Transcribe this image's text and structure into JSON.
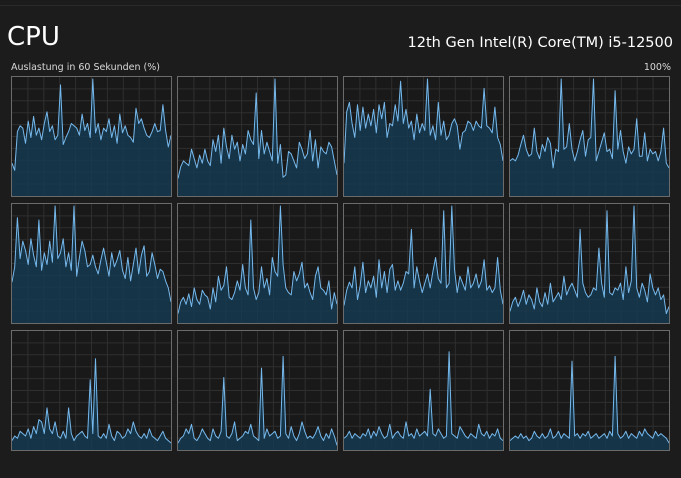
{
  "header": {
    "title": "CPU",
    "processor": "12th Gen Intel(R) Core(TM) i5-12500"
  },
  "chart_data": {
    "type": "area",
    "ylabel": "Auslastung in 60 Sekunden (%)",
    "ymax_label": "100%",
    "ylim": [
      0,
      100
    ],
    "grid": true,
    "line_color": "#76b9ed",
    "fill_color": "#163a50",
    "logical_processors": [
      {
        "values": [
          28,
          22,
          55,
          60,
          58,
          45,
          64,
          50,
          68,
          52,
          58,
          48,
          62,
          72,
          55,
          60,
          48,
          52,
          95,
          44,
          50,
          55,
          62,
          60,
          58,
          52,
          70,
          56,
          62,
          50,
          100,
          54,
          62,
          48,
          58,
          55,
          66,
          50,
          60,
          45,
          70,
          54,
          60,
          52,
          50,
          46,
          75,
          62,
          66,
          58,
          52,
          50,
          55,
          62,
          55,
          56,
          78,
          56,
          42,
          52
        ]
      },
      {
        "values": [
          15,
          25,
          30,
          28,
          26,
          40,
          32,
          24,
          35,
          28,
          40,
          30,
          26,
          48,
          38,
          52,
          28,
          58,
          42,
          32,
          52,
          40,
          46,
          30,
          44,
          36,
          56,
          48,
          44,
          88,
          32,
          56,
          36,
          46,
          38,
          30,
          100,
          28,
          44,
          16,
          18,
          38,
          36,
          30,
          24,
          46,
          40,
          32,
          36,
          56,
          30,
          48,
          24,
          42,
          38,
          36,
          46,
          42,
          30,
          18
        ]
      },
      {
        "values": [
          28,
          72,
          80,
          62,
          50,
          78,
          56,
          76,
          58,
          70,
          60,
          74,
          54,
          78,
          66,
          80,
          50,
          62,
          60,
          78,
          64,
          98,
          62,
          74,
          58,
          64,
          48,
          70,
          54,
          62,
          56,
          100,
          52,
          60,
          48,
          80,
          52,
          64,
          48,
          52,
          62,
          66,
          60,
          40,
          54,
          56,
          64,
          62,
          56,
          64,
          60,
          58,
          92,
          60,
          58,
          54,
          76,
          50,
          44,
          30
        ]
      },
      {
        "values": [
          30,
          32,
          30,
          35,
          44,
          52,
          40,
          34,
          36,
          58,
          38,
          32,
          44,
          38,
          50,
          45,
          24,
          40,
          38,
          100,
          40,
          42,
          62,
          40,
          30,
          38,
          48,
          56,
          34,
          48,
          50,
          100,
          30,
          38,
          46,
          54,
          38,
          40,
          32,
          90,
          40,
          56,
          38,
          28,
          42,
          36,
          40,
          66,
          34,
          34,
          54,
          30,
          40,
          36,
          38,
          30,
          38,
          58,
          28,
          24
        ]
      },
      {
        "values": [
          35,
          48,
          90,
          55,
          70,
          62,
          50,
          72,
          58,
          48,
          88,
          45,
          60,
          50,
          70,
          52,
          100,
          55,
          60,
          72,
          48,
          60,
          45,
          100,
          40,
          56,
          70,
          62,
          48,
          50,
          58,
          48,
          42,
          54,
          64,
          52,
          40,
          60,
          48,
          54,
          62,
          45,
          38,
          56,
          36,
          50,
          64,
          42,
          58,
          66,
          40,
          44,
          60,
          50,
          38,
          46,
          44,
          36,
          30,
          18
        ]
      },
      {
        "values": [
          8,
          18,
          22,
          16,
          25,
          14,
          30,
          20,
          16,
          28,
          24,
          22,
          12,
          30,
          18,
          40,
          28,
          32,
          48,
          22,
          20,
          26,
          36,
          28,
          50,
          30,
          24,
          88,
          30,
          20,
          26,
          48,
          30,
          38,
          24,
          56,
          44,
          40,
          100,
          50,
          30,
          26,
          24,
          44,
          36,
          42,
          52,
          30,
          34,
          26,
          20,
          40,
          48,
          30,
          28,
          24,
          36,
          12,
          26,
          16
        ]
      },
      {
        "values": [
          15,
          28,
          35,
          30,
          48,
          20,
          32,
          52,
          26,
          36,
          30,
          40,
          22,
          54,
          30,
          44,
          26,
          46,
          50,
          28,
          36,
          28,
          34,
          44,
          42,
          80,
          30,
          48,
          36,
          26,
          34,
          42,
          30,
          44,
          56,
          38,
          34,
          96,
          30,
          34,
          100,
          46,
          26,
          40,
          34,
          28,
          48,
          30,
          34,
          42,
          30,
          36,
          54,
          28,
          32,
          26,
          30,
          56,
          28,
          16
        ]
      },
      {
        "values": [
          10,
          18,
          22,
          14,
          20,
          28,
          16,
          24,
          20,
          12,
          30,
          18,
          14,
          26,
          16,
          34,
          18,
          22,
          26,
          20,
          40,
          24,
          30,
          34,
          28,
          22,
          80,
          34,
          26,
          22,
          24,
          30,
          28,
          64,
          34,
          22,
          96,
          26,
          24,
          30,
          28,
          34,
          20,
          48,
          26,
          36,
          100,
          30,
          22,
          34,
          28,
          18,
          42,
          30,
          24,
          30,
          20,
          24,
          8,
          14
        ]
      },
      {
        "values": [
          8,
          12,
          10,
          16,
          14,
          12,
          18,
          10,
          20,
          14,
          26,
          24,
          14,
          36,
          18,
          14,
          24,
          12,
          10,
          16,
          10,
          36,
          14,
          8,
          12,
          14,
          16,
          12,
          10,
          60,
          14,
          78,
          12,
          10,
          14,
          10,
          22,
          12,
          8,
          16,
          14,
          10,
          12,
          18,
          14,
          24,
          16,
          12,
          10,
          14,
          10,
          18,
          12,
          10,
          8,
          12,
          16,
          10,
          8,
          6
        ]
      },
      {
        "values": [
          6,
          10,
          12,
          18,
          14,
          22,
          10,
          8,
          12,
          18,
          14,
          10,
          8,
          18,
          12,
          10,
          16,
          62,
          12,
          10,
          14,
          24,
          8,
          10,
          12,
          16,
          14,
          22,
          12,
          10,
          8,
          70,
          10,
          18,
          12,
          14,
          16,
          10,
          12,
          80,
          14,
          10,
          20,
          12,
          8,
          14,
          24,
          16,
          10,
          12,
          10,
          14,
          20,
          12,
          8,
          14,
          10,
          18,
          12,
          4
        ]
      },
      {
        "values": [
          10,
          12,
          16,
          10,
          14,
          12,
          10,
          14,
          12,
          18,
          10,
          16,
          12,
          20,
          14,
          10,
          12,
          22,
          10,
          14,
          16,
          12,
          10,
          24,
          12,
          14,
          10,
          18,
          12,
          14,
          16,
          12,
          52,
          14,
          12,
          18,
          14,
          10,
          12,
          84,
          14,
          12,
          10,
          20,
          16,
          12,
          10,
          14,
          12,
          10,
          22,
          14,
          12,
          16,
          10,
          14,
          12,
          18,
          10,
          8
        ]
      },
      {
        "values": [
          8,
          10,
          12,
          10,
          14,
          10,
          12,
          8,
          10,
          16,
          12,
          10,
          14,
          10,
          12,
          18,
          10,
          12,
          16,
          10,
          14,
          12,
          10,
          76,
          12,
          14,
          10,
          14,
          12,
          16,
          10,
          12,
          14,
          10,
          12,
          14,
          10,
          16,
          12,
          80,
          14,
          10,
          12,
          16,
          10,
          14,
          12,
          10,
          16,
          12,
          18,
          14,
          12,
          10,
          16,
          12,
          14,
          12,
          10,
          6
        ]
      }
    ]
  }
}
